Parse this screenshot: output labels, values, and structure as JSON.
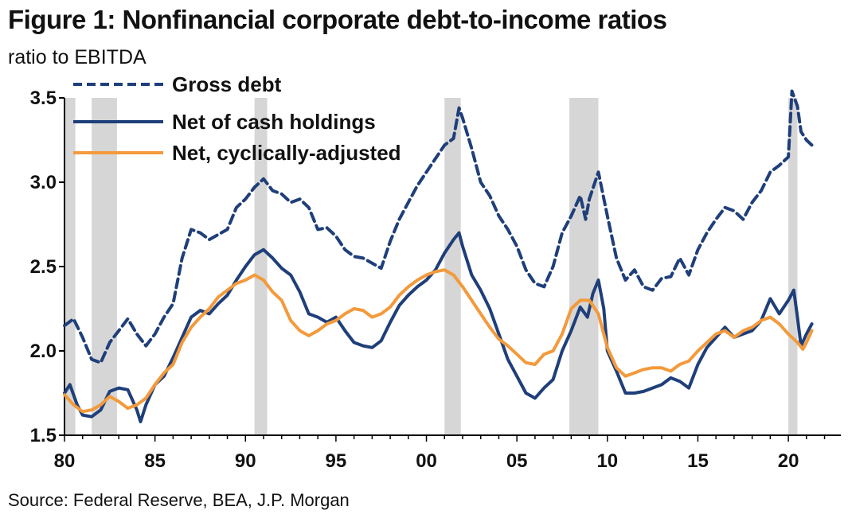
{
  "title": "Figure 1: Nonfinancial corporate debt-to-income ratios",
  "subtitle": "ratio to EBITDA",
  "source": "Source: Federal Reserve, BEA, J.P. Morgan",
  "colors": {
    "gross": "#1f3f7a",
    "net": "#1f3f7a",
    "adjusted": "#f39a3c",
    "recession": "#d6d6d6"
  },
  "chart_data": {
    "type": "line",
    "title": "Figure 1: Nonfinancial corporate debt-to-income ratios",
    "ylabel": "ratio to EBITDA",
    "xlim": [
      1980,
      2022.9
    ],
    "ylim": [
      1.5,
      3.5
    ],
    "x_ticks": [
      1980,
      1985,
      1990,
      1995,
      2000,
      2005,
      2010,
      2015,
      2020
    ],
    "x_tick_labels": [
      "80",
      "85",
      "90",
      "95",
      "00",
      "05",
      "10",
      "15",
      "20"
    ],
    "y_ticks": [
      1.5,
      2.0,
      2.5,
      3.0,
      3.5
    ],
    "y_tick_labels": [
      "1.5",
      "2.0",
      "2.5",
      "3.0",
      "3.5"
    ],
    "legend_position": "top-left",
    "recessions": [
      [
        1980.0,
        1980.6
      ],
      [
        1981.5,
        1982.9
      ],
      [
        1990.5,
        1991.2
      ],
      [
        2001.0,
        2001.9
      ],
      [
        2007.9,
        2009.5
      ],
      [
        2020.0,
        2020.5
      ]
    ],
    "series": [
      {
        "name": "Gross debt",
        "style": "dashed",
        "points": [
          [
            1980.0,
            2.15
          ],
          [
            1980.5,
            2.19
          ],
          [
            1981.0,
            2.08
          ],
          [
            1981.5,
            1.95
          ],
          [
            1982.0,
            1.93
          ],
          [
            1982.5,
            2.05
          ],
          [
            1983.0,
            2.12
          ],
          [
            1983.5,
            2.19
          ],
          [
            1984.0,
            2.1
          ],
          [
            1984.5,
            2.03
          ],
          [
            1985.0,
            2.1
          ],
          [
            1985.5,
            2.2
          ],
          [
            1986.0,
            2.28
          ],
          [
            1986.5,
            2.55
          ],
          [
            1987.0,
            2.72
          ],
          [
            1987.5,
            2.7
          ],
          [
            1988.0,
            2.66
          ],
          [
            1988.5,
            2.69
          ],
          [
            1989.0,
            2.72
          ],
          [
            1989.5,
            2.85
          ],
          [
            1990.0,
            2.9
          ],
          [
            1990.5,
            2.97
          ],
          [
            1991.0,
            3.02
          ],
          [
            1991.5,
            2.95
          ],
          [
            1992.0,
            2.93
          ],
          [
            1992.5,
            2.88
          ],
          [
            1993.0,
            2.9
          ],
          [
            1993.5,
            2.85
          ],
          [
            1994.0,
            2.72
          ],
          [
            1994.5,
            2.73
          ],
          [
            1995.0,
            2.68
          ],
          [
            1995.5,
            2.6
          ],
          [
            1996.0,
            2.56
          ],
          [
            1996.5,
            2.55
          ],
          [
            1997.0,
            2.52
          ],
          [
            1997.5,
            2.49
          ],
          [
            1998.0,
            2.65
          ],
          [
            1998.5,
            2.78
          ],
          [
            1999.0,
            2.88
          ],
          [
            1999.5,
            2.98
          ],
          [
            2000.0,
            3.06
          ],
          [
            2000.5,
            3.14
          ],
          [
            2001.0,
            3.22
          ],
          [
            2001.5,
            3.26
          ],
          [
            2001.8,
            3.44
          ],
          [
            2002.0,
            3.38
          ],
          [
            2002.5,
            3.2
          ],
          [
            2003.0,
            3.0
          ],
          [
            2003.5,
            2.92
          ],
          [
            2004.0,
            2.8
          ],
          [
            2004.5,
            2.72
          ],
          [
            2005.0,
            2.62
          ],
          [
            2005.5,
            2.48
          ],
          [
            2006.0,
            2.4
          ],
          [
            2006.5,
            2.38
          ],
          [
            2007.0,
            2.5
          ],
          [
            2007.5,
            2.7
          ],
          [
            2008.0,
            2.8
          ],
          [
            2008.5,
            2.92
          ],
          [
            2008.8,
            2.78
          ],
          [
            2009.0,
            2.9
          ],
          [
            2009.5,
            3.06
          ],
          [
            2010.0,
            2.8
          ],
          [
            2010.5,
            2.55
          ],
          [
            2011.0,
            2.42
          ],
          [
            2011.5,
            2.48
          ],
          [
            2012.0,
            2.38
          ],
          [
            2012.5,
            2.36
          ],
          [
            2013.0,
            2.43
          ],
          [
            2013.5,
            2.44
          ],
          [
            2014.0,
            2.55
          ],
          [
            2014.5,
            2.45
          ],
          [
            2015.0,
            2.6
          ],
          [
            2015.5,
            2.7
          ],
          [
            2016.0,
            2.78
          ],
          [
            2016.5,
            2.85
          ],
          [
            2017.0,
            2.83
          ],
          [
            2017.5,
            2.78
          ],
          [
            2018.0,
            2.88
          ],
          [
            2018.5,
            2.95
          ],
          [
            2019.0,
            3.06
          ],
          [
            2019.5,
            3.1
          ],
          [
            2020.0,
            3.15
          ],
          [
            2020.2,
            3.58
          ],
          [
            2020.5,
            3.45
          ],
          [
            2020.7,
            3.3
          ],
          [
            2021.0,
            3.25
          ],
          [
            2021.3,
            3.22
          ]
        ]
      },
      {
        "name": "Net of cash holdings",
        "style": "solid",
        "points": [
          [
            1980.0,
            1.75
          ],
          [
            1980.3,
            1.8
          ],
          [
            1980.7,
            1.68
          ],
          [
            1981.0,
            1.62
          ],
          [
            1981.5,
            1.61
          ],
          [
            1982.0,
            1.65
          ],
          [
            1982.5,
            1.76
          ],
          [
            1983.0,
            1.78
          ],
          [
            1983.5,
            1.77
          ],
          [
            1984.0,
            1.65
          ],
          [
            1984.2,
            1.58
          ],
          [
            1984.5,
            1.68
          ],
          [
            1985.0,
            1.8
          ],
          [
            1985.5,
            1.85
          ],
          [
            1986.0,
            1.96
          ],
          [
            1986.5,
            2.08
          ],
          [
            1987.0,
            2.2
          ],
          [
            1987.5,
            2.24
          ],
          [
            1988.0,
            2.22
          ],
          [
            1988.5,
            2.28
          ],
          [
            1989.0,
            2.33
          ],
          [
            1989.5,
            2.42
          ],
          [
            1990.0,
            2.5
          ],
          [
            1990.5,
            2.57
          ],
          [
            1991.0,
            2.6
          ],
          [
            1991.5,
            2.55
          ],
          [
            1992.0,
            2.49
          ],
          [
            1992.5,
            2.45
          ],
          [
            1993.0,
            2.35
          ],
          [
            1993.5,
            2.22
          ],
          [
            1994.0,
            2.2
          ],
          [
            1994.5,
            2.17
          ],
          [
            1995.0,
            2.2
          ],
          [
            1995.5,
            2.12
          ],
          [
            1996.0,
            2.05
          ],
          [
            1996.5,
            2.03
          ],
          [
            1997.0,
            2.02
          ],
          [
            1997.5,
            2.06
          ],
          [
            1998.0,
            2.17
          ],
          [
            1998.5,
            2.27
          ],
          [
            1999.0,
            2.33
          ],
          [
            1999.5,
            2.38
          ],
          [
            2000.0,
            2.42
          ],
          [
            2000.5,
            2.48
          ],
          [
            2001.0,
            2.58
          ],
          [
            2001.5,
            2.66
          ],
          [
            2001.8,
            2.7
          ],
          [
            2002.0,
            2.62
          ],
          [
            2002.5,
            2.45
          ],
          [
            2003.0,
            2.36
          ],
          [
            2003.5,
            2.25
          ],
          [
            2004.0,
            2.1
          ],
          [
            2004.5,
            1.95
          ],
          [
            2005.0,
            1.85
          ],
          [
            2005.5,
            1.75
          ],
          [
            2006.0,
            1.72
          ],
          [
            2006.5,
            1.78
          ],
          [
            2007.0,
            1.83
          ],
          [
            2007.5,
            2.0
          ],
          [
            2008.0,
            2.12
          ],
          [
            2008.5,
            2.26
          ],
          [
            2008.9,
            2.2
          ],
          [
            2009.2,
            2.34
          ],
          [
            2009.5,
            2.42
          ],
          [
            2009.8,
            2.25
          ],
          [
            2010.0,
            2.0
          ],
          [
            2010.5,
            1.88
          ],
          [
            2011.0,
            1.75
          ],
          [
            2011.5,
            1.75
          ],
          [
            2012.0,
            1.76
          ],
          [
            2012.5,
            1.78
          ],
          [
            2013.0,
            1.8
          ],
          [
            2013.5,
            1.84
          ],
          [
            2014.0,
            1.82
          ],
          [
            2014.5,
            1.78
          ],
          [
            2015.0,
            1.92
          ],
          [
            2015.5,
            2.02
          ],
          [
            2016.0,
            2.08
          ],
          [
            2016.5,
            2.14
          ],
          [
            2017.0,
            2.08
          ],
          [
            2017.5,
            2.1
          ],
          [
            2018.0,
            2.12
          ],
          [
            2018.5,
            2.18
          ],
          [
            2019.0,
            2.31
          ],
          [
            2019.5,
            2.22
          ],
          [
            2020.0,
            2.3
          ],
          [
            2020.3,
            2.36
          ],
          [
            2020.5,
            2.2
          ],
          [
            2020.7,
            2.03
          ],
          [
            2021.0,
            2.1
          ],
          [
            2021.3,
            2.16
          ]
        ]
      },
      {
        "name": "Net, cyclically-adjusted",
        "style": "solid",
        "points": [
          [
            1980.0,
            1.74
          ],
          [
            1980.5,
            1.68
          ],
          [
            1981.0,
            1.64
          ],
          [
            1981.5,
            1.65
          ],
          [
            1982.0,
            1.68
          ],
          [
            1982.5,
            1.73
          ],
          [
            1983.0,
            1.7
          ],
          [
            1983.5,
            1.66
          ],
          [
            1984.0,
            1.68
          ],
          [
            1984.5,
            1.72
          ],
          [
            1985.0,
            1.8
          ],
          [
            1985.5,
            1.87
          ],
          [
            1986.0,
            1.92
          ],
          [
            1986.5,
            2.05
          ],
          [
            1987.0,
            2.14
          ],
          [
            1987.5,
            2.2
          ],
          [
            1988.0,
            2.25
          ],
          [
            1988.5,
            2.32
          ],
          [
            1989.0,
            2.36
          ],
          [
            1989.5,
            2.4
          ],
          [
            1990.0,
            2.42
          ],
          [
            1990.5,
            2.45
          ],
          [
            1991.0,
            2.42
          ],
          [
            1991.5,
            2.35
          ],
          [
            1992.0,
            2.3
          ],
          [
            1992.5,
            2.18
          ],
          [
            1993.0,
            2.12
          ],
          [
            1993.5,
            2.09
          ],
          [
            1994.0,
            2.12
          ],
          [
            1994.5,
            2.16
          ],
          [
            1995.0,
            2.18
          ],
          [
            1995.5,
            2.22
          ],
          [
            1996.0,
            2.25
          ],
          [
            1996.5,
            2.24
          ],
          [
            1997.0,
            2.2
          ],
          [
            1997.5,
            2.22
          ],
          [
            1998.0,
            2.26
          ],
          [
            1998.5,
            2.33
          ],
          [
            1999.0,
            2.38
          ],
          [
            1999.5,
            2.42
          ],
          [
            2000.0,
            2.45
          ],
          [
            2000.5,
            2.47
          ],
          [
            2001.0,
            2.48
          ],
          [
            2001.5,
            2.45
          ],
          [
            2002.0,
            2.38
          ],
          [
            2002.5,
            2.3
          ],
          [
            2003.0,
            2.22
          ],
          [
            2003.5,
            2.14
          ],
          [
            2004.0,
            2.07
          ],
          [
            2004.5,
            2.03
          ],
          [
            2005.0,
            1.98
          ],
          [
            2005.5,
            1.93
          ],
          [
            2006.0,
            1.92
          ],
          [
            2006.5,
            1.98
          ],
          [
            2007.0,
            2.0
          ],
          [
            2007.5,
            2.1
          ],
          [
            2008.0,
            2.25
          ],
          [
            2008.5,
            2.3
          ],
          [
            2009.0,
            2.3
          ],
          [
            2009.5,
            2.22
          ],
          [
            2010.0,
            2.02
          ],
          [
            2010.5,
            1.9
          ],
          [
            2011.0,
            1.85
          ],
          [
            2011.5,
            1.87
          ],
          [
            2012.0,
            1.89
          ],
          [
            2012.5,
            1.9
          ],
          [
            2013.0,
            1.9
          ],
          [
            2013.5,
            1.88
          ],
          [
            2014.0,
            1.92
          ],
          [
            2014.5,
            1.94
          ],
          [
            2015.0,
            2.0
          ],
          [
            2015.5,
            2.05
          ],
          [
            2016.0,
            2.1
          ],
          [
            2016.5,
            2.12
          ],
          [
            2017.0,
            2.08
          ],
          [
            2017.5,
            2.12
          ],
          [
            2018.0,
            2.14
          ],
          [
            2018.5,
            2.18
          ],
          [
            2019.0,
            2.2
          ],
          [
            2019.5,
            2.16
          ],
          [
            2020.0,
            2.1
          ],
          [
            2020.5,
            2.05
          ],
          [
            2020.8,
            2.01
          ],
          [
            2021.0,
            2.05
          ],
          [
            2021.3,
            2.12
          ]
        ]
      }
    ]
  }
}
